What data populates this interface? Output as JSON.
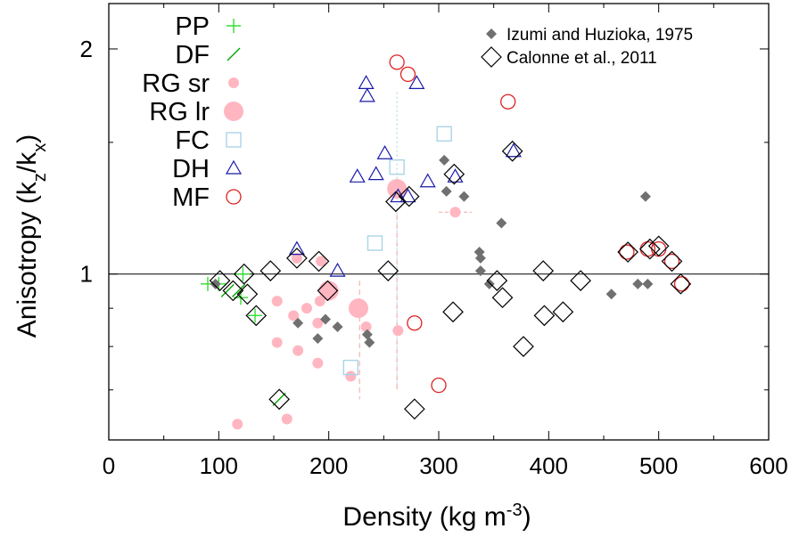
{
  "chart_data": {
    "type": "scatter",
    "xlabel": {
      "main": "Density (kg m",
      "sup": "-3",
      "tail": ")"
    },
    "ylabel": {
      "main": "Anisotropy (k",
      "sub1": "z",
      "mid": "/k",
      "sub2": "x",
      "tail": ")"
    },
    "xlim": [
      0,
      600
    ],
    "ylim": [
      0.6,
      2.3
    ],
    "y_scale": "log",
    "x_ticks": [
      "0",
      "100",
      "200",
      "300",
      "400",
      "500",
      "600"
    ],
    "x_tick_values": [
      0,
      100,
      200,
      300,
      400,
      500,
      600
    ],
    "y_tick_labels": [
      {
        "value": 1,
        "label": "1"
      },
      {
        "value": 2,
        "label": "2"
      }
    ],
    "y_minor_ticks": [
      0.7,
      0.8,
      0.9,
      1.5
    ],
    "reference_line": 1,
    "grid": false,
    "legend_left_position": "top-left",
    "legend_right_position": "top-right",
    "series": [
      {
        "name": "PP",
        "marker": "plus",
        "color": "#33dd33",
        "points": [
          {
            "x": 90,
            "y": 0.97
          },
          {
            "x": 100,
            "y": 0.97
          },
          {
            "x": 122,
            "y": 1.0
          },
          {
            "x": 120,
            "y": 0.93
          },
          {
            "x": 133,
            "y": 0.88
          }
        ]
      },
      {
        "name": "DF",
        "marker": "slash",
        "color": "#00aa00",
        "points": [
          {
            "x": 108,
            "y": 0.95
          },
          {
            "x": 118,
            "y": 0.95
          },
          {
            "x": 155,
            "y": 0.68
          }
        ]
      },
      {
        "name": "RG sr",
        "marker": "disc-small",
        "color": "#ffb6c1",
        "points": [
          {
            "x": 117,
            "y": 0.63
          },
          {
            "x": 153,
            "y": 0.92
          },
          {
            "x": 153,
            "y": 0.81
          },
          {
            "x": 162,
            "y": 0.64
          },
          {
            "x": 168,
            "y": 0.88
          },
          {
            "x": 171,
            "y": 1.05
          },
          {
            "x": 172,
            "y": 0.79
          },
          {
            "x": 180,
            "y": 0.9
          },
          {
            "x": 190,
            "y": 0.86
          },
          {
            "x": 190,
            "y": 0.76
          },
          {
            "x": 192,
            "y": 0.92
          },
          {
            "x": 193,
            "y": 1.04
          },
          {
            "x": 198,
            "y": 0.96
          },
          {
            "x": 220,
            "y": 0.73
          },
          {
            "x": 234,
            "y": 0.85
          },
          {
            "x": 263,
            "y": 0.84
          },
          {
            "x": 315,
            "y": 1.21
          }
        ]
      },
      {
        "name": "RG lr",
        "marker": "disc-large",
        "color": "#ffb6c1",
        "points": [
          {
            "x": 200,
            "y": 0.95
          },
          {
            "x": 227,
            "y": 0.9
          },
          {
            "x": 262,
            "y": 1.3
          }
        ]
      },
      {
        "name": "FC",
        "marker": "square",
        "color": "#aad4e6",
        "points": [
          {
            "x": 220,
            "y": 0.75
          },
          {
            "x": 242,
            "y": 1.1
          },
          {
            "x": 262,
            "y": 1.39
          },
          {
            "x": 305,
            "y": 1.54
          }
        ]
      },
      {
        "name": "DH",
        "marker": "triangle",
        "color": "#1a1aaa",
        "points": [
          {
            "x": 171,
            "y": 1.08
          },
          {
            "x": 208,
            "y": 1.01
          },
          {
            "x": 226,
            "y": 1.35
          },
          {
            "x": 243,
            "y": 1.36
          },
          {
            "x": 251,
            "y": 1.45
          },
          {
            "x": 234,
            "y": 1.8
          },
          {
            "x": 235,
            "y": 1.73
          },
          {
            "x": 263,
            "y": 1.27
          },
          {
            "x": 272,
            "y": 1.27
          },
          {
            "x": 280,
            "y": 1.8
          },
          {
            "x": 290,
            "y": 1.33
          },
          {
            "x": 315,
            "y": 1.35
          },
          {
            "x": 368,
            "y": 1.46
          }
        ]
      },
      {
        "name": "MF",
        "marker": "circle",
        "color": "#dd2222",
        "points": [
          {
            "x": 262,
            "y": 1.92
          },
          {
            "x": 272,
            "y": 1.85
          },
          {
            "x": 278,
            "y": 0.86
          },
          {
            "x": 300,
            "y": 0.71
          },
          {
            "x": 363,
            "y": 1.7
          },
          {
            "x": 471,
            "y": 1.07
          },
          {
            "x": 490,
            "y": 1.08
          },
          {
            "x": 500,
            "y": 1.08
          },
          {
            "x": 512,
            "y": 1.04
          },
          {
            "x": 521,
            "y": 0.97
          }
        ]
      },
      {
        "name": "Izumi and Huzioka, 1975",
        "marker": "diamond-filled",
        "color": "#707070",
        "points": [
          {
            "x": 97,
            "y": 0.97
          },
          {
            "x": 172,
            "y": 0.86
          },
          {
            "x": 190,
            "y": 0.82
          },
          {
            "x": 197,
            "y": 0.87
          },
          {
            "x": 208,
            "y": 0.85
          },
          {
            "x": 235,
            "y": 0.83
          },
          {
            "x": 237,
            "y": 0.81
          },
          {
            "x": 305,
            "y": 1.42
          },
          {
            "x": 307,
            "y": 1.29
          },
          {
            "x": 323,
            "y": 1.27
          },
          {
            "x": 337,
            "y": 1.07
          },
          {
            "x": 338,
            "y": 1.05
          },
          {
            "x": 338,
            "y": 1.01
          },
          {
            "x": 346,
            "y": 0.97
          },
          {
            "x": 357,
            "y": 1.17
          },
          {
            "x": 457,
            "y": 0.94
          },
          {
            "x": 481,
            "y": 0.97
          },
          {
            "x": 488,
            "y": 1.27
          },
          {
            "x": 490,
            "y": 0.97
          }
        ]
      },
      {
        "name": "Calonne et al., 2011",
        "marker": "diamond-open",
        "color": "#000000",
        "points": [
          {
            "x": 101,
            "y": 0.98
          },
          {
            "x": 113,
            "y": 0.95
          },
          {
            "x": 123,
            "y": 1.0
          },
          {
            "x": 126,
            "y": 0.94
          },
          {
            "x": 134,
            "y": 0.88
          },
          {
            "x": 147,
            "y": 1.01
          },
          {
            "x": 155,
            "y": 0.68
          },
          {
            "x": 171,
            "y": 1.05
          },
          {
            "x": 191,
            "y": 1.04
          },
          {
            "x": 199,
            "y": 0.95
          },
          {
            "x": 254,
            "y": 1.01
          },
          {
            "x": 261,
            "y": 1.25
          },
          {
            "x": 273,
            "y": 1.27
          },
          {
            "x": 278,
            "y": 0.66
          },
          {
            "x": 313,
            "y": 0.89
          },
          {
            "x": 314,
            "y": 1.36
          },
          {
            "x": 353,
            "y": 0.98
          },
          {
            "x": 358,
            "y": 0.93
          },
          {
            "x": 367,
            "y": 1.46
          },
          {
            "x": 377,
            "y": 0.8
          },
          {
            "x": 395,
            "y": 1.01
          },
          {
            "x": 396,
            "y": 0.88
          },
          {
            "x": 413,
            "y": 0.89
          },
          {
            "x": 429,
            "y": 0.98
          },
          {
            "x": 472,
            "y": 1.07
          },
          {
            "x": 492,
            "y": 1.08
          },
          {
            "x": 500,
            "y": 1.09
          },
          {
            "x": 512,
            "y": 1.04
          },
          {
            "x": 520,
            "y": 0.97
          }
        ]
      }
    ]
  }
}
